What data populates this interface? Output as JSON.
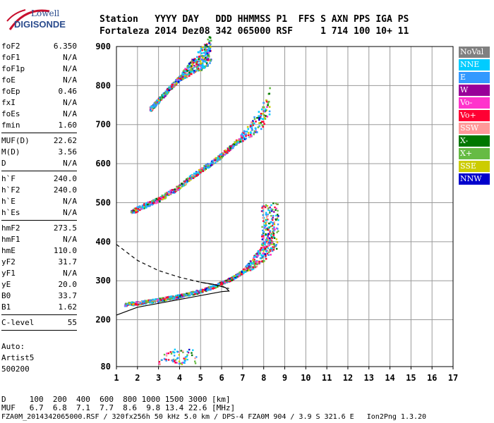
{
  "logo": {
    "line1": "Lowell",
    "line2": "DIGISONDE"
  },
  "header": {
    "row1": "Station   YYYY DAY   DDD HHMMSS P1  FFS S AXN PPS IGA PS",
    "row2": "Fortaleza 2014 Dez08 342 065000 RSF     1 714 100 10+ 11"
  },
  "params": [
    {
      "k": "foF2",
      "v": "6.350"
    },
    {
      "k": "foF1",
      "v": "N/A"
    },
    {
      "k": "foF1p",
      "v": "N/A"
    },
    {
      "k": "foE",
      "v": "N/A"
    },
    {
      "k": "foEp",
      "v": "0.46"
    },
    {
      "k": "fxI",
      "v": "N/A"
    },
    {
      "k": "foEs",
      "v": "N/A"
    },
    {
      "k": "fmin",
      "v": "1.60"
    },
    {
      "sep": true
    },
    {
      "k": "MUF(D)",
      "v": "22.62"
    },
    {
      "k": "M(D)",
      "v": "3.56"
    },
    {
      "k": "D",
      "v": "N/A"
    },
    {
      "sep": true
    },
    {
      "k": "h`F",
      "v": "240.0"
    },
    {
      "k": "h`F2",
      "v": "240.0"
    },
    {
      "k": "h`E",
      "v": "N/A"
    },
    {
      "k": "h`Es",
      "v": "N/A"
    },
    {
      "sep": true
    },
    {
      "k": "hmF2",
      "v": "273.5"
    },
    {
      "k": "hmF1",
      "v": "N/A"
    },
    {
      "k": "hmE",
      "v": "110.0"
    },
    {
      "k": "yF2",
      "v": "31.7"
    },
    {
      "k": "yF1",
      "v": "N/A"
    },
    {
      "k": "yE",
      "v": "20.0"
    },
    {
      "k": "B0",
      "v": "33.7"
    },
    {
      "k": "B1",
      "v": "1.62"
    },
    {
      "sep": true
    },
    {
      "k": "C-level",
      "v": "55"
    },
    {
      "sep": true
    }
  ],
  "auto": {
    "line1": "Auto:",
    "line2": "Artist5",
    "line3": "500200"
  },
  "legend": [
    {
      "label": "NoVal",
      "color": "#808080"
    },
    {
      "label": "NNE",
      "color": "#00ccff"
    },
    {
      "label": "E",
      "color": "#3399ff"
    },
    {
      "label": "W",
      "color": "#990099"
    },
    {
      "label": "Vo-",
      "color": "#ff33cc"
    },
    {
      "label": "Vo+",
      "color": "#ff0033"
    },
    {
      "label": "SSW",
      "color": "#ff9999"
    },
    {
      "label": "X-",
      "color": "#007700"
    },
    {
      "label": "X+",
      "color": "#66bb44"
    },
    {
      "label": "SSE",
      "color": "#cccc00"
    },
    {
      "label": "NNW",
      "color": "#0000cc"
    }
  ],
  "bottom": {
    "row1": "D     100  200  400  600  800 1000 1500 3000 [km]",
    "row2": "MUF   6.7  6.8  7.1  7.7  8.6  9.8 13.4 22.6 [MHz]",
    "row3": "FZA0M_2014342065000.RSF / 320fx256h 50 kHz 5.0 km / DPS-4 FZA0M 904 / 3.9 S 321.6 E   Ion2Png 1.3.20"
  },
  "chart_data": {
    "type": "scatter",
    "title": "",
    "xlabel": "",
    "ylabel": "",
    "xlim": [
      1,
      17
    ],
    "ylim": [
      80,
      900
    ],
    "x_ticks": [
      1,
      2,
      3,
      4,
      5,
      6,
      7,
      8,
      9,
      10,
      11,
      12,
      13,
      14,
      15,
      16,
      17
    ],
    "y_ticks": [
      80,
      200,
      300,
      400,
      500,
      600,
      700,
      800,
      900
    ],
    "grid": true,
    "series": [
      {
        "name": "O trace 1st hop",
        "points": [
          [
            1.4,
            239
          ],
          [
            2,
            242
          ],
          [
            2.5,
            246
          ],
          [
            3,
            250
          ],
          [
            3.5,
            255
          ],
          [
            4,
            260
          ],
          [
            4.5,
            266
          ],
          [
            5,
            273
          ],
          [
            5.5,
            282
          ],
          [
            6,
            293
          ],
          [
            6.5,
            305
          ],
          [
            7,
            322
          ],
          [
            7.5,
            345
          ],
          [
            8,
            375
          ],
          [
            8.5,
            410
          ]
        ]
      },
      {
        "name": "2nd hop",
        "points": [
          [
            1.7,
            476
          ],
          [
            2.5,
            495
          ],
          [
            3,
            507
          ],
          [
            3.5,
            523
          ],
          [
            4,
            540
          ],
          [
            4.5,
            562
          ],
          [
            5,
            582
          ],
          [
            5.5,
            600
          ],
          [
            6,
            620
          ],
          [
            6.5,
            645
          ],
          [
            7,
            668
          ],
          [
            7.5,
            693
          ],
          [
            8,
            725
          ],
          [
            8.3,
            760
          ]
        ]
      },
      {
        "name": "3rd hop",
        "points": [
          [
            2.6,
            738
          ],
          [
            3,
            760
          ],
          [
            3.5,
            790
          ],
          [
            4,
            818
          ],
          [
            4.5,
            843
          ],
          [
            5,
            866
          ],
          [
            5.5,
            895
          ]
        ]
      }
    ],
    "profile_solid": [
      [
        1,
        212
      ],
      [
        2,
        232
      ],
      [
        3,
        242
      ],
      [
        4,
        252
      ],
      [
        5,
        262
      ],
      [
        6,
        272
      ],
      [
        6.35,
        273.5
      ],
      [
        6.2,
        282
      ],
      [
        5.6,
        291
      ],
      [
        5,
        296
      ]
    ],
    "profile_dashed": [
      [
        1,
        393
      ],
      [
        2,
        352
      ],
      [
        3,
        326
      ],
      [
        4,
        309
      ],
      [
        5,
        296
      ],
      [
        6,
        286
      ],
      [
        6.35,
        280
      ]
    ]
  }
}
